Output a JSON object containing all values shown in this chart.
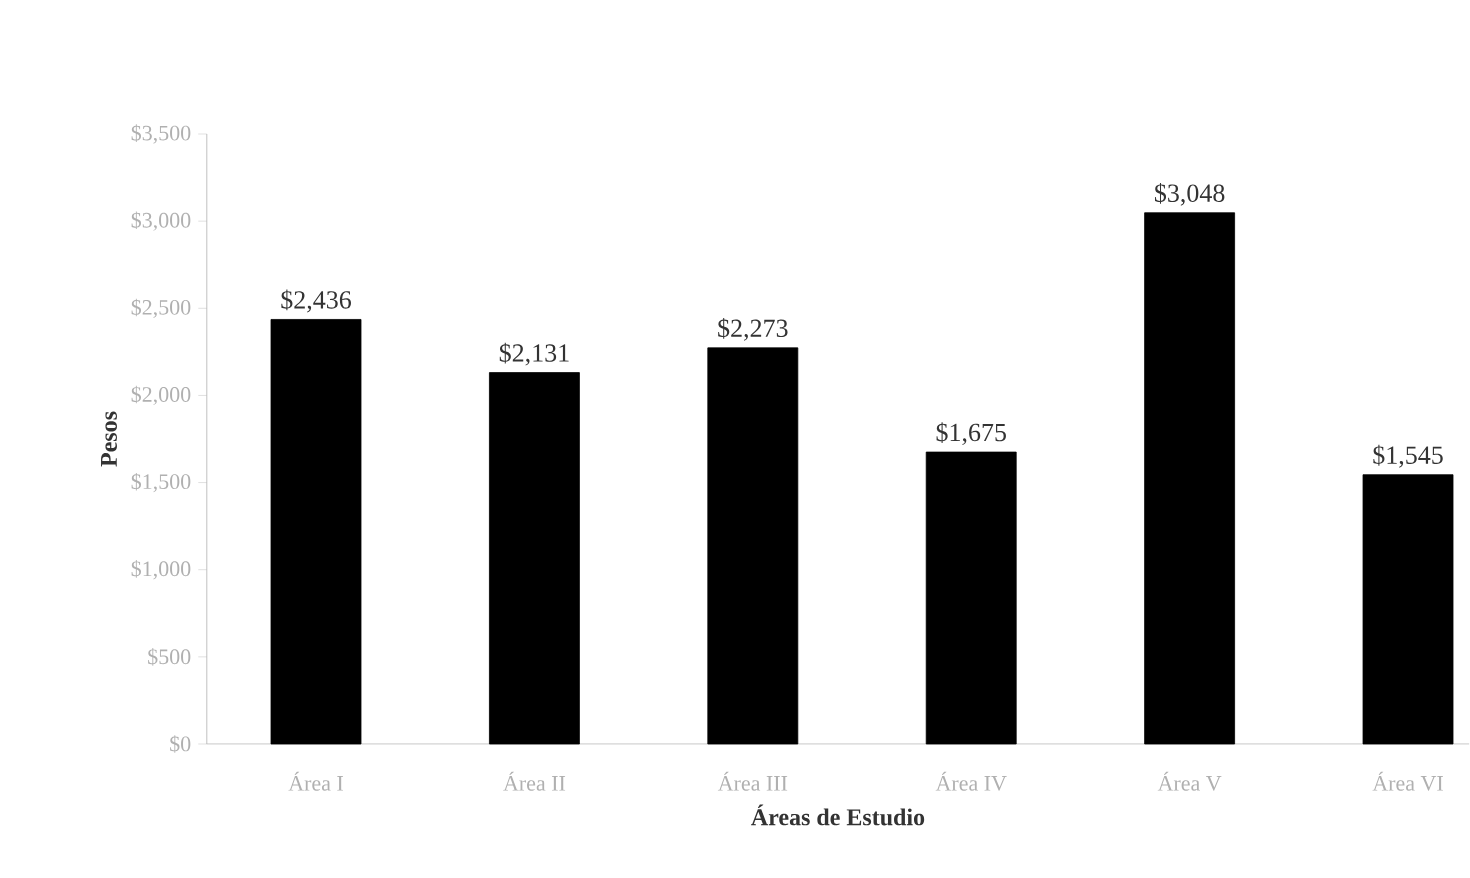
{
  "chart_data": {
    "type": "bar",
    "xlabel": "Áreas de Estudio",
    "ylabel": "Pesos",
    "categories": [
      "Área I",
      "Área II",
      "Área III",
      "Área IV",
      "Área V",
      "Área VI"
    ],
    "values": [
      2436,
      2131,
      2273,
      1675,
      3048,
      1545
    ],
    "value_labels": [
      "$2,436",
      "$2,131",
      "$2,273",
      "$1,675",
      "$3,048",
      "$1,545"
    ],
    "color": "#000000",
    "ylim": [
      0,
      3500
    ],
    "yticks": [
      {
        "value": 0,
        "label": "$0"
      },
      {
        "value": 500,
        "label": "$500"
      },
      {
        "value": 1000,
        "label": "$1,000"
      },
      {
        "value": 1500,
        "label": "$1,500"
      },
      {
        "value": 2000,
        "label": "$2,000"
      },
      {
        "value": 2500,
        "label": "$2,500"
      },
      {
        "value": 3000,
        "label": "$3,000"
      },
      {
        "value": 3500,
        "label": "$3,500"
      }
    ],
    "grid": false
  }
}
